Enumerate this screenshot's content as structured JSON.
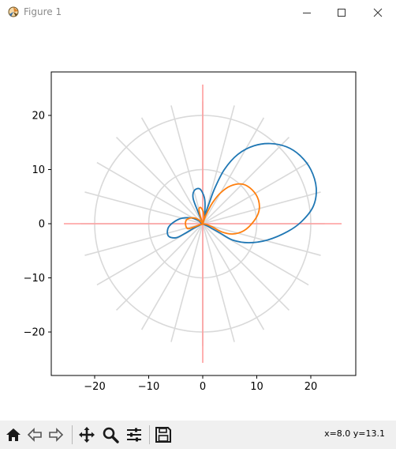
{
  "window": {
    "title": "Figure 1",
    "icon": "matplotlib-figure-icon",
    "controls": [
      "minimize-icon",
      "maximize-icon",
      "close-icon"
    ]
  },
  "toolbar": {
    "buttons": [
      "home-icon",
      "back-arrow-icon",
      "forward-arrow-icon",
      "pan-move-icon",
      "zoom-magnifier-icon",
      "configure-subplots-icon",
      "save-floppy-icon"
    ],
    "coords_text": "x=8.0 y=13.1"
  },
  "chart_data": {
    "type": "line",
    "title": "",
    "xlabel": "",
    "ylabel": "",
    "xlim": [
      -28,
      28
    ],
    "ylim": [
      -28,
      28
    ],
    "xticks": [
      "−20",
      "−10",
      "0",
      "10",
      "20"
    ],
    "yticks": [
      "20",
      "10",
      "0",
      "−10",
      "−20"
    ],
    "xtick_values": [
      -20,
      -10,
      0,
      10,
      20
    ],
    "ytick_values": [
      20,
      10,
      0,
      -10,
      -20
    ],
    "grid_circles": [
      10,
      20
    ],
    "grid_rays_deg": [
      0,
      15,
      30,
      45,
      60,
      75,
      90,
      105,
      120,
      135,
      150,
      165
    ],
    "grid_ray_extent": 22.6,
    "axis_lines_extent": 25.7,
    "colors": {
      "series_1": "#1f77b4",
      "series_2": "#ff7f0e",
      "grid": "#d9d9d9",
      "axis_lines": "#ff9c9c"
    },
    "series": [
      {
        "points": [
          [
            0,
            0
          ],
          [
            0.5,
            1.8
          ],
          [
            1.2,
            3.8
          ],
          [
            2.2,
            6.5
          ],
          [
            4.0,
            10.0
          ],
          [
            6.5,
            12.8
          ],
          [
            9.5,
            14.4
          ],
          [
            12.5,
            14.8
          ],
          [
            15.5,
            14.2
          ],
          [
            18.0,
            12.6
          ],
          [
            20.0,
            10.0
          ],
          [
            21.0,
            6.6
          ],
          [
            20.5,
            3.3
          ],
          [
            18.5,
            0.6
          ],
          [
            15.8,
            -1.4
          ],
          [
            12.0,
            -3.0
          ],
          [
            8.5,
            -3.5
          ],
          [
            5.5,
            -3.0
          ],
          [
            3.0,
            -1.6
          ],
          [
            1.0,
            -0.5
          ],
          [
            0,
            0
          ],
          [
            -0.3,
            0.8
          ],
          [
            -1.0,
            2.5
          ],
          [
            -1.8,
            4.8
          ],
          [
            -1.5,
            6.2
          ],
          [
            -0.5,
            6.4
          ],
          [
            0.3,
            4.8
          ],
          [
            0.4,
            2.5
          ],
          [
            0,
            0
          ],
          [
            -0.8,
            0.6
          ],
          [
            -2.4,
            1.1
          ],
          [
            -4.5,
            0.8
          ],
          [
            -6.3,
            -0.6
          ],
          [
            -6.4,
            -2.2
          ],
          [
            -5.0,
            -2.6
          ],
          [
            -3.3,
            -1.8
          ],
          [
            -1.6,
            -0.8
          ],
          [
            0,
            0
          ]
        ]
      },
      {
        "points": [
          [
            0,
            0
          ],
          [
            0.6,
            1.6
          ],
          [
            1.7,
            3.7
          ],
          [
            3.2,
            5.6
          ],
          [
            5.2,
            7.0
          ],
          [
            7.4,
            7.3
          ],
          [
            9.2,
            6.2
          ],
          [
            10.3,
            4.4
          ],
          [
            10.4,
            2.3
          ],
          [
            9.4,
            0.4
          ],
          [
            7.6,
            -1.3
          ],
          [
            5.5,
            -1.9
          ],
          [
            3.5,
            -1.5
          ],
          [
            1.8,
            -0.6
          ],
          [
            0.6,
            -0.1
          ],
          [
            0,
            0
          ],
          [
            -0.7,
            0.7
          ],
          [
            -1.8,
            1.1
          ],
          [
            -2.9,
            0.8
          ],
          [
            -3.2,
            0.0
          ],
          [
            -2.8,
            -0.9
          ],
          [
            -1.6,
            -0.6
          ],
          [
            -0.6,
            -0.2
          ],
          [
            0,
            0
          ],
          [
            -0.4,
            1.2
          ],
          [
            -0.7,
            2.6
          ],
          [
            -0.4,
            3.0
          ],
          [
            0.1,
            2.2
          ],
          [
            0.2,
            1.0
          ],
          [
            0,
            0
          ]
        ]
      }
    ]
  }
}
